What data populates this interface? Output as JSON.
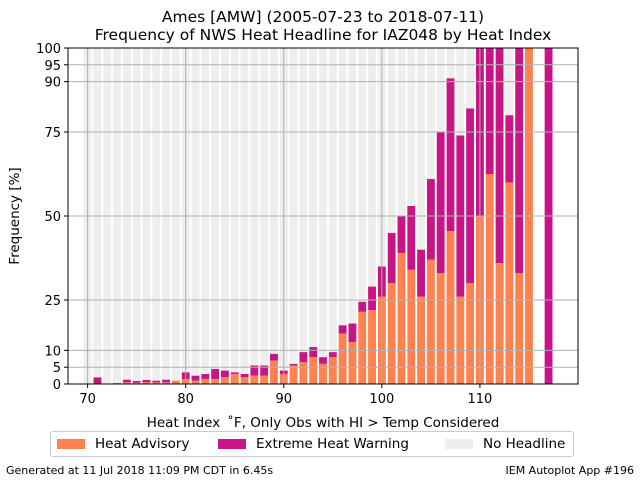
{
  "chart_data": {
    "type": "bar",
    "title": "Ames [AMW] (2005-07-23 to 2018-07-11)\nFrequency of NWS Heat Headline for IAZ048 by Heat Index",
    "xlabel": "Heat Index  ˚F, Only Obs with HI > Temp Considered",
    "ylabel": "Frequency [%]",
    "xlim": [
      68,
      120
    ],
    "ylim": [
      0,
      100
    ],
    "xticks": [
      70,
      80,
      90,
      100,
      110
    ],
    "yticks": [
      0,
      5,
      10,
      25,
      50,
      75,
      90,
      95,
      100
    ],
    "grid": true,
    "stacked": true,
    "legend_position": "bottom",
    "x": [
      70,
      71,
      72,
      73,
      74,
      75,
      76,
      77,
      78,
      79,
      80,
      81,
      82,
      83,
      84,
      85,
      86,
      87,
      88,
      89,
      90,
      91,
      92,
      93,
      94,
      95,
      96,
      97,
      98,
      99,
      100,
      101,
      102,
      103,
      104,
      105,
      106,
      107,
      108,
      109,
      110,
      111,
      112,
      113,
      114,
      115,
      116,
      117
    ],
    "series": [
      {
        "name": "Heat Advisory",
        "color": "#ff8150",
        "values": [
          0,
          0,
          0,
          0.3,
          0.5,
          0.4,
          0.5,
          0.5,
          0.5,
          1,
          1.5,
          1,
          1.5,
          1.5,
          2,
          3,
          2,
          2.5,
          2.5,
          7,
          3,
          5.5,
          6.5,
          8,
          6,
          8,
          15,
          12.5,
          21.5,
          22,
          26,
          30,
          39,
          34,
          26,
          37,
          33,
          45.5,
          26,
          30,
          50,
          62.5,
          36,
          60,
          33,
          100,
          0,
          0
        ]
      },
      {
        "name": "Extreme Heat Warning",
        "color": "#c71585",
        "values": [
          0,
          2,
          0,
          0,
          0.8,
          0.5,
          0.7,
          0.5,
          0.8,
          0,
          2,
          1.5,
          1.5,
          3,
          2,
          0.5,
          1,
          3,
          3,
          2,
          1,
          0.5,
          3,
          3,
          2,
          1.5,
          2.5,
          5.5,
          3,
          7,
          9,
          15,
          11,
          19,
          14,
          24,
          42,
          45.5,
          48,
          52,
          50,
          37.5,
          64,
          20,
          67,
          0,
          0,
          100
        ]
      },
      {
        "name": "No Headline",
        "color": "#eeeeee",
        "values": [
          100,
          98,
          100,
          99.7,
          98.7,
          99.1,
          98.8,
          99,
          98.7,
          99,
          96.5,
          97.5,
          97,
          95.5,
          96,
          96.5,
          97,
          94.5,
          94.5,
          91,
          96,
          94,
          90.5,
          89,
          92,
          90.5,
          82.5,
          82,
          75.5,
          71,
          65,
          55,
          50,
          47,
          60,
          39,
          25,
          9,
          26,
          18,
          0,
          0,
          0,
          20,
          0,
          0,
          0,
          0
        ]
      }
    ]
  },
  "legend": {
    "advisory": "Heat Advisory",
    "warning": "Extreme Heat Warning",
    "none": "No Headline"
  },
  "footer": {
    "generated": "Generated at 11 Jul 2018 11:09 PM CDT in 6.45s",
    "app": "IEM Autoplot App #196"
  }
}
